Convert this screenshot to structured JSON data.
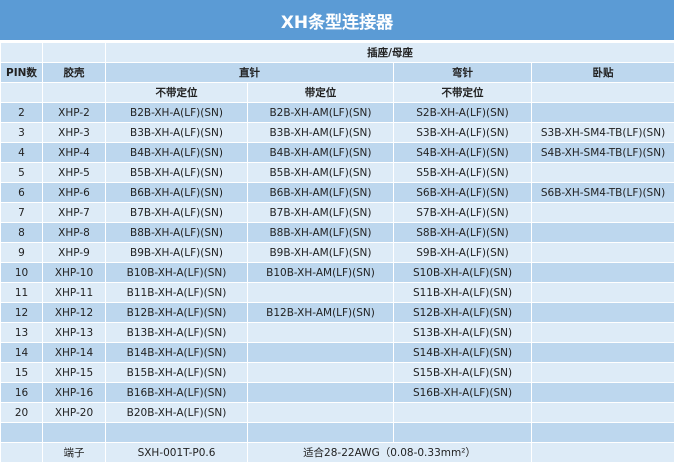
{
  "title": "XH条型连接器",
  "header": {
    "group": "插座/母座",
    "pin": "PIN数",
    "housing": "胶壳",
    "straight": "直针",
    "right_angle": "弯针",
    "smt": "卧贴",
    "no_boss": "不带定位",
    "with_boss": "带定位",
    "no_boss_ra": "不带定位"
  },
  "rows": [
    [
      "2",
      "XHP-2",
      "B2B-XH-A(LF)(SN)",
      "B2B-XH-AM(LF)(SN)",
      "S2B-XH-A(LF)(SN)",
      ""
    ],
    [
      "3",
      "XHP-3",
      "B3B-XH-A(LF)(SN)",
      "B3B-XH-AM(LF)(SN)",
      "S3B-XH-A(LF)(SN)",
      "S3B-XH-SM4-TB(LF)(SN)"
    ],
    [
      "4",
      "XHP-4",
      "B4B-XH-A(LF)(SN)",
      "B4B-XH-AM(LF)(SN)",
      "S4B-XH-A(LF)(SN)",
      "S4B-XH-SM4-TB(LF)(SN)"
    ],
    [
      "5",
      "XHP-5",
      "B5B-XH-A(LF)(SN)",
      "B5B-XH-AM(LF)(SN)",
      "S5B-XH-A(LF)(SN)",
      ""
    ],
    [
      "6",
      "XHP-6",
      "B6B-XH-A(LF)(SN)",
      "B6B-XH-AM(LF)(SN)",
      "S6B-XH-A(LF)(SN)",
      "S6B-XH-SM4-TB(LF)(SN)"
    ],
    [
      "7",
      "XHP-7",
      "B7B-XH-A(LF)(SN)",
      "B7B-XH-AM(LF)(SN)",
      "S7B-XH-A(LF)(SN)",
      ""
    ],
    [
      "8",
      "XHP-8",
      "B8B-XH-A(LF)(SN)",
      "B8B-XH-AM(LF)(SN)",
      "S8B-XH-A(LF)(SN)",
      ""
    ],
    [
      "9",
      "XHP-9",
      "B9B-XH-A(LF)(SN)",
      "B9B-XH-AM(LF)(SN)",
      "S9B-XH-A(LF)(SN)",
      ""
    ],
    [
      "10",
      "XHP-10",
      "B10B-XH-A(LF)(SN)",
      "B10B-XH-AM(LF)(SN)",
      "S10B-XH-A(LF)(SN)",
      ""
    ],
    [
      "11",
      "XHP-11",
      "B11B-XH-A(LF)(SN)",
      "",
      "S11B-XH-A(LF)(SN)",
      ""
    ],
    [
      "12",
      "XHP-12",
      "B12B-XH-A(LF)(SN)",
      "B12B-XH-AM(LF)(SN)",
      "S12B-XH-A(LF)(SN)",
      ""
    ],
    [
      "13",
      "XHP-13",
      "B13B-XH-A(LF)(SN)",
      "",
      "S13B-XH-A(LF)(SN)",
      ""
    ],
    [
      "14",
      "XHP-14",
      "B14B-XH-A(LF)(SN)",
      "",
      "S14B-XH-A(LF)(SN)",
      ""
    ],
    [
      "15",
      "XHP-15",
      "B15B-XH-A(LF)(SN)",
      "",
      "S15B-XH-A(LF)(SN)",
      ""
    ],
    [
      "16",
      "XHP-16",
      "B16B-XH-A(LF)(SN)",
      "",
      "S16B-XH-A(LF)(SN)",
      ""
    ],
    [
      "20",
      "XHP-20",
      "B20B-XH-A(LF)(SN)",
      "",
      "",
      ""
    ]
  ],
  "footer": {
    "label": "端子",
    "part": "SXH-001T-P0.6",
    "spec": "适合28-22AWG（0.08-0.33mm²）"
  }
}
